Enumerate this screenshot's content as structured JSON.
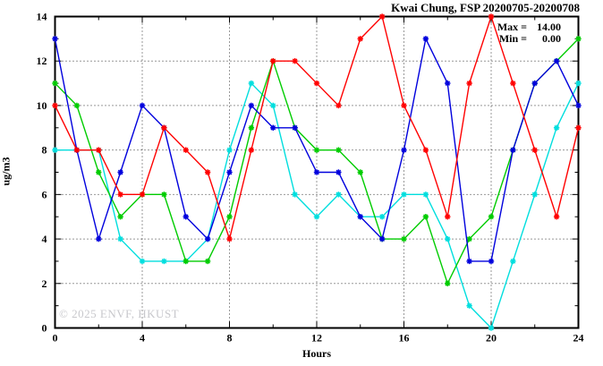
{
  "figure": {
    "title": "Kwai Chung, FSP 20200705-20200708",
    "watermark": "© 2025 ENVF, HKUST",
    "legend": {
      "max_label": "Max =",
      "max_value": "14.00",
      "min_label": "Min =",
      "min_value": "0.00"
    }
  },
  "chart_data": {
    "type": "line",
    "title": "Kwai Chung, FSP 20200705-20200708",
    "xlabel": "Hours",
    "ylabel": "ug/m3",
    "xlim": [
      0,
      24
    ],
    "ylim": [
      0,
      14
    ],
    "xticks": [
      0,
      4,
      8,
      12,
      16,
      20,
      24
    ],
    "yticks": [
      0,
      2,
      4,
      6,
      8,
      10,
      12,
      14
    ],
    "x_minor_step": 2,
    "y_minor_step": 1,
    "grid": "dotted",
    "legend_position": "top-right",
    "marker": "star",
    "x": [
      0,
      1,
      2,
      3,
      4,
      5,
      6,
      7,
      8,
      9,
      10,
      11,
      12,
      13,
      14,
      15,
      16,
      17,
      18,
      19,
      20,
      21,
      22,
      23,
      24
    ],
    "series": [
      {
        "name": "cyan-series",
        "color": "#00dede",
        "values": [
          8,
          8,
          8,
          4,
          3,
          3,
          3,
          4,
          8,
          11,
          10,
          6,
          5,
          6,
          5,
          5,
          6,
          6,
          4,
          1,
          0,
          3,
          6,
          9,
          11
        ]
      },
      {
        "name": "green-series",
        "color": "#00cc00",
        "values": [
          11,
          10,
          7,
          5,
          6,
          6,
          3,
          3,
          5,
          9,
          12,
          9,
          8,
          8,
          7,
          4,
          4,
          5,
          2,
          4,
          5,
          8,
          11,
          12,
          13
        ]
      },
      {
        "name": "blue-series",
        "color": "#0000dd",
        "values": [
          13,
          8,
          4,
          7,
          10,
          9,
          5,
          4,
          7,
          10,
          9,
          9,
          7,
          7,
          5,
          4,
          8,
          13,
          11,
          3,
          3,
          8,
          11,
          12,
          10
        ]
      },
      {
        "name": "red-series",
        "color": "#ff0000",
        "values": [
          10,
          8,
          8,
          6,
          6,
          9,
          8,
          7,
          4,
          8,
          12,
          12,
          11,
          10,
          13,
          14,
          10,
          8,
          5,
          11,
          14,
          11,
          8,
          5,
          9
        ]
      }
    ],
    "annotations": {
      "max": 14.0,
      "min": 0.0
    }
  }
}
